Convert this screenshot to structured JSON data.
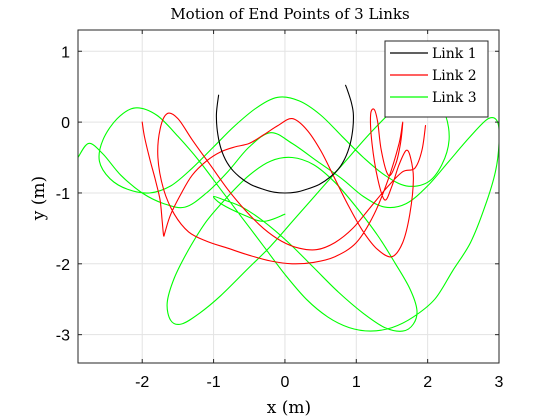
{
  "chart_data": {
    "type": "line",
    "title": "Motion of End Points of 3 Links",
    "xlabel": "x (m)",
    "ylabel": "y (m)",
    "xlim": [
      -2.9,
      3.0
    ],
    "ylim": [
      -3.4,
      1.3
    ],
    "xticks": [
      -2,
      -1,
      0,
      1,
      2,
      3
    ],
    "yticks": [
      -3,
      -2,
      -1,
      0,
      1
    ],
    "xtick_labels": [
      "-2",
      "-1",
      "0",
      "1",
      "2",
      "3"
    ],
    "ytick_labels": [
      "-3",
      "-2",
      "-1",
      "0",
      "1"
    ],
    "grid": true,
    "legend_position": "top-right",
    "series": [
      {
        "name": "Link 1",
        "color": "#000000",
        "x": [
          -0.93,
          -0.96,
          -0.94,
          -0.88,
          -0.78,
          -0.64,
          -0.48,
          -0.3,
          -0.15,
          0.0,
          0.15,
          0.3,
          0.48,
          0.64,
          0.78,
          0.88,
          0.94,
          0.96,
          0.93,
          0.88,
          0.85
        ],
        "y": [
          0.38,
          0.1,
          -0.18,
          -0.42,
          -0.62,
          -0.77,
          -0.88,
          -0.95,
          -0.99,
          -1.0,
          -0.99,
          -0.95,
          -0.88,
          -0.77,
          -0.62,
          -0.42,
          -0.18,
          0.1,
          0.28,
          0.44,
          0.52
        ]
      },
      {
        "name": "Link 2",
        "color": "#ff0000",
        "x": [
          -2.0,
          -1.97,
          -1.9,
          -1.82,
          -1.75,
          -1.72,
          -1.7,
          -1.68,
          -1.6,
          -1.45,
          -1.3,
          -1.1,
          -0.9,
          -0.7,
          -0.5,
          -0.3,
          -0.1,
          0.1,
          0.3,
          0.5,
          0.7,
          0.9,
          1.1,
          1.3,
          1.5,
          1.65,
          1.75,
          1.8,
          1.76,
          1.7,
          1.6,
          1.5,
          1.4,
          1.3,
          1.22,
          1.2,
          1.25,
          1.3,
          1.35,
          1.45,
          1.55,
          1.62,
          1.65,
          1.6,
          1.45,
          1.25,
          1.0,
          0.7,
          0.4,
          0.1,
          -0.2,
          -0.5,
          -0.8,
          -1.1,
          -1.35,
          -1.55,
          -1.7,
          -1.78,
          -1.75,
          -1.65,
          -1.5,
          -1.3,
          -1.05,
          -0.8,
          -0.55,
          -0.3,
          -0.05,
          0.2,
          0.45,
          0.7,
          0.95,
          1.2,
          1.45,
          1.65,
          1.82,
          1.92,
          1.97
        ],
        "y": [
          0.0,
          -0.2,
          -0.5,
          -0.8,
          -1.1,
          -1.4,
          -1.6,
          -1.55,
          -1.3,
          -1.0,
          -0.75,
          -0.55,
          -0.42,
          -0.35,
          -0.3,
          -0.18,
          -0.05,
          0.05,
          -0.1,
          -0.4,
          -0.8,
          -1.2,
          -1.55,
          -1.8,
          -1.9,
          -1.7,
          -1.3,
          -0.8,
          -0.5,
          -0.4,
          -0.6,
          -0.9,
          -1.1,
          -0.8,
          -0.3,
          0.1,
          0.18,
          0.0,
          -0.4,
          -0.75,
          -0.6,
          -0.3,
          0.0,
          -0.3,
          -0.8,
          -1.3,
          -1.7,
          -1.9,
          -1.98,
          -2.0,
          -1.96,
          -1.88,
          -1.78,
          -1.68,
          -1.55,
          -1.3,
          -0.95,
          -0.5,
          -0.1,
          0.12,
          0.05,
          -0.25,
          -0.6,
          -0.95,
          -1.25,
          -1.5,
          -1.68,
          -1.78,
          -1.8,
          -1.7,
          -1.5,
          -1.2,
          -0.9,
          -0.7,
          -0.65,
          -0.4,
          -0.05
        ]
      },
      {
        "name": "Link 3",
        "color": "#00ff00",
        "x": [
          -2.9,
          -2.75,
          -2.55,
          -2.3,
          -2.0,
          -1.7,
          -1.4,
          -1.1,
          -0.8,
          -0.5,
          -0.2,
          0.1,
          0.45,
          0.8,
          1.1,
          1.4,
          1.7,
          2.0,
          2.3,
          2.6,
          2.85,
          2.98,
          3.0,
          2.95,
          2.8,
          2.6,
          2.35,
          2.1,
          1.8,
          1.5,
          1.2,
          0.9,
          0.6,
          0.3,
          0.0,
          -0.3,
          -0.6,
          -0.9,
          -1.2,
          -1.5,
          -1.8,
          -2.1,
          -2.35,
          -2.55,
          -2.6,
          -2.45,
          -2.2,
          -1.9,
          -1.6,
          -1.3,
          -1.0,
          -0.7,
          -0.4,
          -0.1,
          0.2,
          0.5,
          0.8,
          1.1,
          1.4,
          1.7,
          2.0,
          2.2,
          2.3,
          2.25,
          2.1,
          1.85,
          1.55,
          1.2,
          0.85,
          0.5,
          0.15,
          -0.2,
          -0.55,
          -0.9,
          -1.2,
          -1.45,
          -1.6,
          -1.65,
          -1.55,
          -1.35,
          -1.1,
          -0.8,
          -0.5,
          -0.2,
          0.1,
          0.4,
          0.7,
          1.0,
          1.3,
          1.55,
          1.75,
          1.85,
          1.8,
          1.65,
          1.4,
          1.1,
          0.75,
          0.4,
          0.05,
          -0.3,
          -0.6,
          -0.85,
          -1.0,
          -0.9,
          -0.6,
          -0.3,
          0.0
        ],
        "y": [
          -0.5,
          -0.3,
          -0.45,
          -0.75,
          -1.0,
          -1.15,
          -1.2,
          -1.0,
          -0.7,
          -0.35,
          -0.15,
          -0.3,
          -0.55,
          -0.8,
          -1.05,
          -1.2,
          -1.15,
          -0.9,
          -0.55,
          -0.2,
          0.05,
          0.0,
          -0.3,
          -0.7,
          -1.2,
          -1.7,
          -2.1,
          -2.5,
          -2.75,
          -2.9,
          -2.95,
          -2.9,
          -2.75,
          -2.5,
          -2.15,
          -1.75,
          -1.35,
          -0.95,
          -0.55,
          -0.2,
          0.1,
          0.2,
          0.05,
          -0.25,
          -0.55,
          -0.8,
          -0.95,
          -1.0,
          -0.9,
          -0.65,
          -0.35,
          -0.05,
          0.2,
          0.35,
          0.3,
          0.1,
          -0.2,
          -0.5,
          -0.75,
          -0.9,
          -0.85,
          -0.6,
          -0.25,
          0.1,
          0.35,
          0.4,
          0.2,
          -0.15,
          -0.55,
          -0.95,
          -1.35,
          -1.75,
          -2.1,
          -2.45,
          -2.7,
          -2.85,
          -2.8,
          -2.55,
          -2.2,
          -1.8,
          -1.4,
          -1.05,
          -0.75,
          -0.55,
          -0.5,
          -0.6,
          -0.85,
          -1.2,
          -1.6,
          -2.0,
          -2.35,
          -2.65,
          -2.85,
          -2.95,
          -2.9,
          -2.7,
          -2.4,
          -2.05,
          -1.7,
          -1.4,
          -1.2,
          -1.1,
          -1.05,
          -1.15,
          -1.3,
          -1.4,
          -1.3
        ]
      }
    ]
  }
}
